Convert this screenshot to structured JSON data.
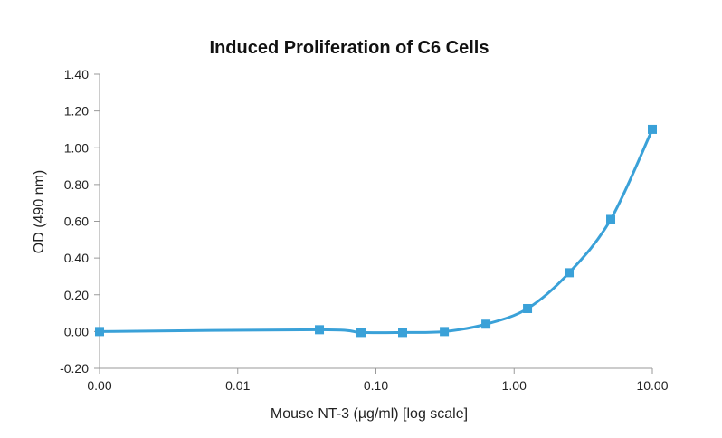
{
  "chart_data": {
    "type": "line",
    "title": "Induced Proliferation of C6 Cells",
    "xlabel": "Mouse NT-3 (µg/ml) [log scale]",
    "ylabel": "OD (490 nm)",
    "x_scale": "log",
    "x_ticks": [
      {
        "value": 0.001,
        "label": "0.00"
      },
      {
        "value": 0.01,
        "label": "0.01"
      },
      {
        "value": 0.1,
        "label": "0.10"
      },
      {
        "value": 1,
        "label": "1.00"
      },
      {
        "value": 10,
        "label": "10.00"
      }
    ],
    "y_ticks": [
      "-0.20",
      "0.00",
      "0.20",
      "0.40",
      "0.60",
      "0.80",
      "1.00",
      "1.20",
      "1.40"
    ],
    "xlim": [
      0.001,
      10
    ],
    "ylim": [
      -0.2,
      1.4
    ],
    "grid": false,
    "legend": "none",
    "series": [
      {
        "color": "#3aa1d8",
        "marker": "square",
        "x": [
          0.001,
          0.039,
          0.078,
          0.156,
          0.3125,
          0.625,
          1.25,
          2.5,
          5,
          10
        ],
        "y": [
          0.0,
          0.01,
          -0.005,
          -0.005,
          0.0,
          0.04,
          0.125,
          0.32,
          0.61,
          1.1
        ]
      }
    ]
  }
}
